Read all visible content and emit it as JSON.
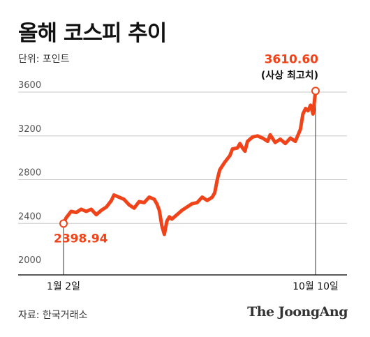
{
  "header": {
    "title": "올해 코스피 추이",
    "unit": "단위: 포인트"
  },
  "footer": {
    "source": "자료: 한국거래소",
    "logo": "The JoongAng"
  },
  "colors": {
    "line": "#f0431a",
    "grid": "#c8c8c8",
    "axis": "#222222"
  },
  "chart_data": {
    "type": "line",
    "title": "올해 코스피 추이",
    "ylabel": "단위: 포인트",
    "ylim": [
      2000,
      3700
    ],
    "yticks": [
      2000,
      2400,
      2800,
      3200,
      3600
    ],
    "ytick_labels": [
      "2000",
      "2400",
      "2800",
      "3200",
      "3600"
    ],
    "xlim": [
      0,
      1
    ],
    "xticks": [
      {
        "x": 0,
        "label": "1월 2일"
      },
      {
        "x": 1,
        "label": "10월 10일"
      }
    ],
    "grid": true,
    "series": [
      {
        "values": [
          [
            0.0,
            2399
          ],
          [
            0.01,
            2450
          ],
          [
            0.02,
            2480
          ],
          [
            0.03,
            2510
          ],
          [
            0.05,
            2500
          ],
          [
            0.07,
            2530
          ],
          [
            0.09,
            2510
          ],
          [
            0.11,
            2530
          ],
          [
            0.13,
            2480
          ],
          [
            0.15,
            2520
          ],
          [
            0.17,
            2550
          ],
          [
            0.19,
            2610
          ],
          [
            0.2,
            2660
          ],
          [
            0.22,
            2640
          ],
          [
            0.24,
            2620
          ],
          [
            0.26,
            2570
          ],
          [
            0.28,
            2540
          ],
          [
            0.3,
            2600
          ],
          [
            0.32,
            2590
          ],
          [
            0.34,
            2640
          ],
          [
            0.36,
            2620
          ],
          [
            0.37,
            2580
          ],
          [
            0.38,
            2520
          ],
          [
            0.39,
            2380
          ],
          [
            0.4,
            2300
          ],
          [
            0.41,
            2420
          ],
          [
            0.42,
            2460
          ],
          [
            0.43,
            2440
          ],
          [
            0.45,
            2480
          ],
          [
            0.47,
            2520
          ],
          [
            0.49,
            2550
          ],
          [
            0.51,
            2580
          ],
          [
            0.53,
            2590
          ],
          [
            0.55,
            2640
          ],
          [
            0.57,
            2610
          ],
          [
            0.59,
            2640
          ],
          [
            0.6,
            2680
          ],
          [
            0.61,
            2800
          ],
          [
            0.62,
            2890
          ],
          [
            0.64,
            2960
          ],
          [
            0.66,
            3020
          ],
          [
            0.67,
            3080
          ],
          [
            0.69,
            3090
          ],
          [
            0.7,
            3130
          ],
          [
            0.71,
            3090
          ],
          [
            0.72,
            3060
          ],
          [
            0.73,
            3150
          ],
          [
            0.75,
            3190
          ],
          [
            0.77,
            3200
          ],
          [
            0.79,
            3180
          ],
          [
            0.81,
            3150
          ],
          [
            0.82,
            3210
          ],
          [
            0.84,
            3140
          ],
          [
            0.86,
            3170
          ],
          [
            0.88,
            3130
          ],
          [
            0.9,
            3180
          ],
          [
            0.92,
            3150
          ],
          [
            0.94,
            3260
          ],
          [
            0.95,
            3400
          ],
          [
            0.96,
            3450
          ],
          [
            0.97,
            3430
          ],
          [
            0.98,
            3480
          ],
          [
            0.99,
            3400
          ],
          [
            1.0,
            3611
          ]
        ]
      }
    ],
    "annotations": [
      {
        "x": 0.0,
        "y": 2398.94,
        "label": "2398.94",
        "position": "below"
      },
      {
        "x": 1.0,
        "y": 3610.6,
        "label": "3610.60",
        "sublabel": "(사상 최고치)",
        "position": "above"
      }
    ]
  }
}
